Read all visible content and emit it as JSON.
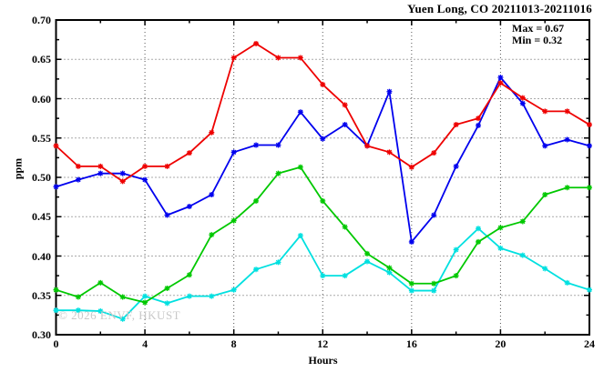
{
  "title": "Yuen Long, CO 20211013-20211016",
  "stats": {
    "max_label": "Max = 0.67",
    "min_label": "Min = 0.32"
  },
  "watermark": "© 2026 ENVF, HKUST",
  "chart_data": {
    "type": "line",
    "title": "Yuen Long, CO 20211013-20211016",
    "xlabel": "Hours",
    "ylabel": "ppm",
    "xlim": [
      0,
      24
    ],
    "ylim": [
      0.3,
      0.7
    ],
    "grid": true,
    "legend": "none",
    "marker": "asterisk",
    "x_major_ticks": [
      0,
      4,
      8,
      12,
      16,
      20,
      24
    ],
    "x_minor_ticks": [
      2,
      6,
      10,
      14,
      18,
      22
    ],
    "y_major_ticks": [
      0.3,
      0.35,
      0.4,
      0.45,
      0.5,
      0.55,
      0.6,
      0.65,
      0.7
    ],
    "y_minor_ticks": [
      0.325,
      0.375,
      0.425,
      0.475,
      0.525,
      0.575,
      0.625,
      0.675
    ],
    "x_grid": [
      4,
      8,
      12,
      16,
      20
    ],
    "y_grid": [
      0.35,
      0.4,
      0.45,
      0.5,
      0.55,
      0.6,
      0.65
    ],
    "x": [
      0,
      1,
      2,
      3,
      4,
      5,
      6,
      7,
      8,
      9,
      10,
      11,
      12,
      13,
      14,
      15,
      16,
      17,
      18,
      19,
      20,
      21,
      22,
      23,
      24
    ],
    "series": [
      {
        "name": "cyan",
        "color": "#00e0e0",
        "values": [
          0.331,
          0.331,
          0.33,
          0.32,
          0.349,
          0.34,
          0.349,
          0.349,
          0.357,
          0.383,
          0.392,
          0.426,
          0.375,
          0.375,
          0.393,
          0.379,
          0.356,
          0.356,
          0.408,
          0.435,
          0.41,
          0.401,
          0.384,
          0.366,
          0.357
        ]
      },
      {
        "name": "green",
        "color": "#00c800",
        "values": [
          0.357,
          0.348,
          0.366,
          0.348,
          0.341,
          0.359,
          0.376,
          0.427,
          0.445,
          0.47,
          0.505,
          0.513,
          0.47,
          0.437,
          0.403,
          0.385,
          0.365,
          0.365,
          0.375,
          0.418,
          0.436,
          0.444,
          0.478,
          0.487,
          0.487
        ]
      },
      {
        "name": "blue",
        "color": "#0000ee",
        "values": [
          0.488,
          0.497,
          0.505,
          0.505,
          0.497,
          0.452,
          0.463,
          0.478,
          0.532,
          0.541,
          0.541,
          0.583,
          0.549,
          0.567,
          0.54,
          0.609,
          0.418,
          0.452,
          0.514,
          0.566,
          0.627,
          0.594,
          0.54,
          0.548,
          0.54
        ]
      },
      {
        "name": "red",
        "color": "#ee0000",
        "values": [
          0.54,
          0.514,
          0.514,
          0.495,
          0.514,
          0.514,
          0.531,
          0.557,
          0.652,
          0.67,
          0.652,
          0.652,
          0.618,
          0.592,
          0.54,
          0.532,
          0.513,
          0.531,
          0.567,
          0.575,
          0.62,
          0.601,
          0.584,
          0.584,
          0.567
        ]
      }
    ],
    "annotations": [
      "Max = 0.67",
      "Min = 0.32"
    ]
  }
}
